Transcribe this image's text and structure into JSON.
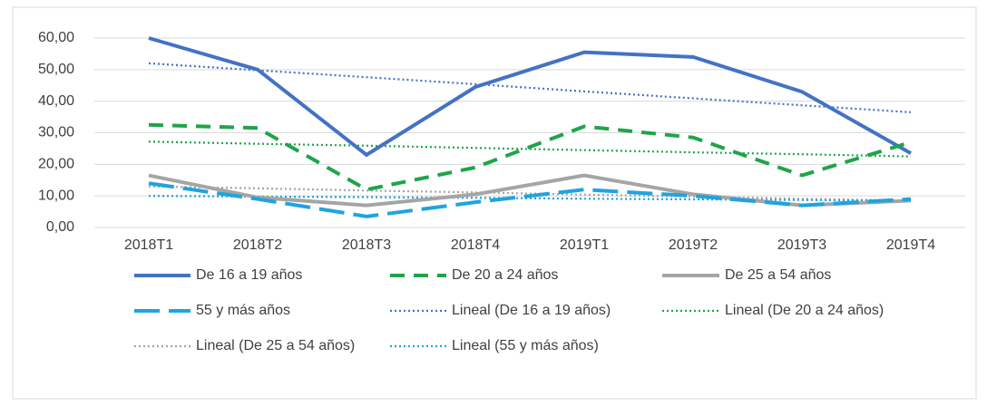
{
  "chart_data": {
    "type": "line",
    "categories": [
      "2018T1",
      "2018T2",
      "2018T3",
      "2018T4",
      "2019T1",
      "2019T2",
      "2019T3",
      "2019T4"
    ],
    "series": [
      {
        "name": "De 16 a 19 años",
        "color": "#4472c4",
        "dash": "solid",
        "values": [
          60,
          50,
          23,
          44.5,
          55.5,
          54,
          43,
          23.5
        ]
      },
      {
        "name": "De 20 a 24 años",
        "color": "#1fa44b",
        "dash": "dash",
        "values": [
          32.5,
          31.5,
          12,
          19,
          32,
          28.5,
          16.5,
          27
        ]
      },
      {
        "name": "De 25 a 54 años",
        "color": "#a5a5a5",
        "dash": "solid",
        "values": [
          16.5,
          9.5,
          7,
          10.5,
          16.5,
          10.5,
          7,
          8.5
        ]
      },
      {
        "name": "55 y más años",
        "color": "#1fa4df",
        "dash": "longdash",
        "values": [
          14,
          9,
          3.5,
          8,
          12,
          10,
          7,
          9
        ]
      },
      {
        "name": "Lineal (De 16 a 19 años)",
        "color": "#4472c4",
        "dash": "dot",
        "values": [
          52,
          49.8,
          47.6,
          45.4,
          43.1,
          40.9,
          38.7,
          36.5
        ]
      },
      {
        "name": "Lineal (De 20 a 24 años)",
        "color": "#1fa44b",
        "dash": "dot",
        "values": [
          27.2,
          26.5,
          25.9,
          25.2,
          24.5,
          23.8,
          23.2,
          22.5
        ]
      },
      {
        "name": "Lineal (De 25 a 54 años)",
        "color": "#a5a5a5",
        "dash": "dot",
        "values": [
          13,
          12.4,
          11.7,
          11.1,
          10.4,
          9.8,
          9.1,
          8.5
        ]
      },
      {
        "name": "Lineal (55 y más años)",
        "color": "#1fa4df",
        "dash": "dot",
        "values": [
          10,
          9.8,
          9.6,
          9.4,
          9.1,
          8.9,
          8.7,
          8.5
        ]
      }
    ],
    "ylim": [
      0,
      60
    ],
    "yticks": [
      {
        "value": 0,
        "label": "0,00"
      },
      {
        "value": 10,
        "label": "10,00"
      },
      {
        "value": 20,
        "label": "20,00"
      },
      {
        "value": 30,
        "label": "30,00"
      },
      {
        "value": 40,
        "label": "40,00"
      },
      {
        "value": 50,
        "label": "50,00"
      },
      {
        "value": 60,
        "label": "60,00"
      }
    ],
    "grid": true,
    "legend": "bottom"
  }
}
